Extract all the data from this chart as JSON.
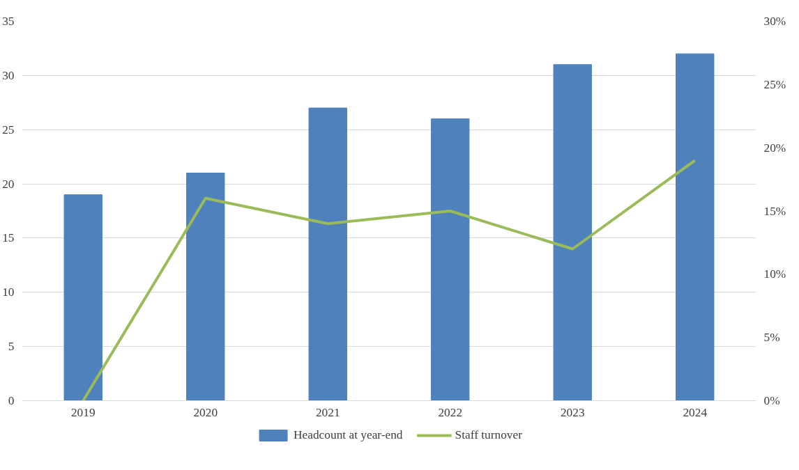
{
  "chart_data": {
    "type": "bar",
    "categories": [
      "2019",
      "2020",
      "2021",
      "2022",
      "2023",
      "2024"
    ],
    "series": [
      {
        "name": "Headcount at year-end",
        "color": "#4f81bd",
        "values": [
          19,
          21,
          27,
          26,
          31,
          32
        ]
      },
      {
        "name": "Staff turnover",
        "type": "line",
        "axis": "y2",
        "color": "#9bbb59",
        "values": [
          0,
          16,
          14,
          15,
          12,
          19
        ]
      }
    ],
    "ylim": [
      0,
      35
    ],
    "yticks": [
      0,
      5,
      10,
      15,
      20,
      25,
      30,
      35
    ],
    "y2lim": [
      0,
      30
    ],
    "y2ticks": [
      {
        "value": 0,
        "label": "0%"
      },
      {
        "value": 5,
        "label": "5%"
      },
      {
        "value": 10,
        "label": "10%"
      },
      {
        "value": 15,
        "label": "15%"
      },
      {
        "value": 20,
        "label": "20%"
      },
      {
        "value": 25,
        "label": "25%"
      },
      {
        "value": 30,
        "label": "30%"
      }
    ],
    "grid": "y",
    "legend": "bottom"
  }
}
